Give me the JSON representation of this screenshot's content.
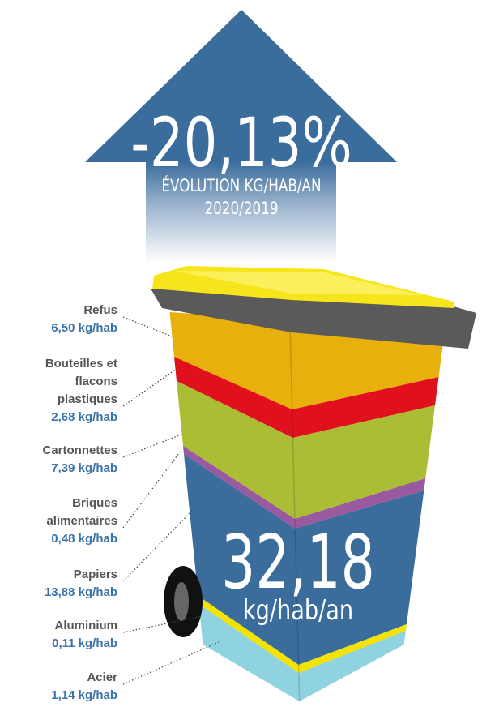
{
  "header": {
    "value": "-20,13%",
    "label": "ÉVOLUTION KG/HAB/AN",
    "period": "2020/2019"
  },
  "items": [
    {
      "name": [
        "Refus"
      ],
      "value": "6,50 kg/hab"
    },
    {
      "name": [
        "Bouteilles et",
        "flacons",
        "plastiques"
      ],
      "value": "2,68 kg/hab"
    },
    {
      "name": [
        "Cartonnettes"
      ],
      "value": "7,39 kg/hab"
    },
    {
      "name": [
        "Briques",
        "alimentaires"
      ],
      "value": "0,48 kg/hab"
    },
    {
      "name": [
        "Papiers"
      ],
      "value": "13,88 kg/hab"
    },
    {
      "name": [
        "Aluminium"
      ],
      "value": "0,11 kg/hab"
    },
    {
      "name": [
        "Acier"
      ],
      "value": "1,14 kg/hab"
    }
  ],
  "total": {
    "value": "32,18",
    "unit": "kg/hab/an"
  }
}
